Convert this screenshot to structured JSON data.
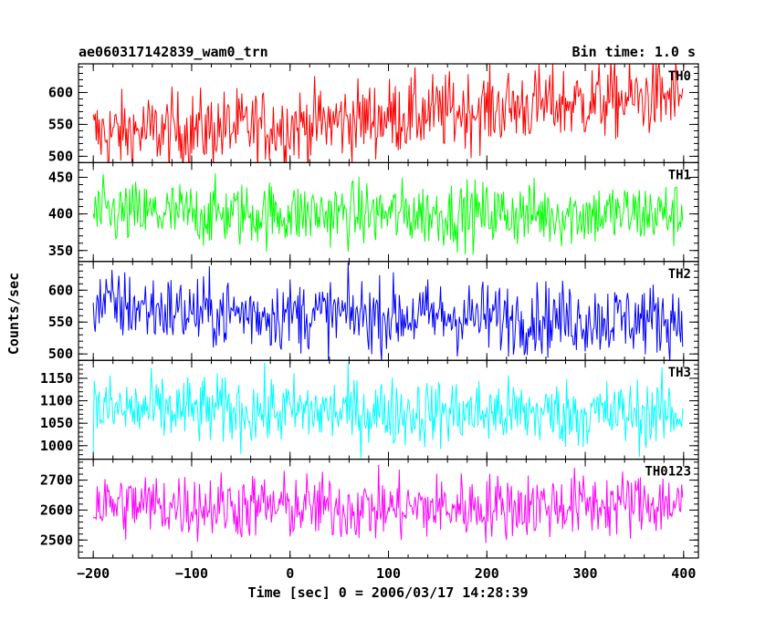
{
  "chart_data": {
    "type": "line",
    "title_left": "ae060317142839_wam0_trn",
    "title_right": "Bin time: 1.0 s",
    "xlabel": "Time [sec] 0 = 2006/03/17 14:28:39",
    "ylabel": "Counts/sec",
    "xlim": [
      -215,
      415
    ],
    "x_ticks": [
      -200,
      -100,
      0,
      100,
      200,
      300,
      400
    ],
    "x_range_data": [
      -200,
      399
    ],
    "panels": [
      {
        "name": "TH0",
        "color": "#ff0000",
        "ylim": [
          490,
          645
        ],
        "y_ticks": [
          500,
          550,
          600
        ],
        "trend": [
          [
            -200,
            535
          ],
          [
            0,
            548
          ],
          [
            100,
            562
          ],
          [
            200,
            575
          ],
          [
            300,
            585
          ],
          [
            399,
            595
          ]
        ],
        "noise": 30
      },
      {
        "name": "TH1",
        "color": "#00ff00",
        "ylim": [
          335,
          470
        ],
        "y_ticks": [
          350,
          400,
          450
        ],
        "trend": [
          [
            -200,
            400
          ],
          [
            399,
            400
          ]
        ],
        "noise": 22
      },
      {
        "name": "TH2",
        "color": "#0000ff",
        "ylim": [
          490,
          645
        ],
        "y_ticks": [
          500,
          550,
          600
        ],
        "trend": [
          [
            -200,
            580
          ],
          [
            -100,
            565
          ],
          [
            100,
            560
          ],
          [
            300,
            555
          ],
          [
            399,
            555
          ]
        ],
        "noise": 28
      },
      {
        "name": "TH3",
        "color": "#00ffff",
        "ylim": [
          970,
          1190
        ],
        "y_ticks": [
          1000,
          1050,
          1100,
          1150
        ],
        "trend": [
          [
            -200,
            1080
          ],
          [
            399,
            1070
          ]
        ],
        "noise": 38
      },
      {
        "name": "TH0123",
        "color": "#ff00ff",
        "ylim": [
          2440,
          2770
        ],
        "y_ticks": [
          2500,
          2600,
          2700
        ],
        "trend": [
          [
            -200,
            2620
          ],
          [
            100,
            2605
          ],
          [
            399,
            2625
          ]
        ],
        "noise": 55
      }
    ]
  }
}
